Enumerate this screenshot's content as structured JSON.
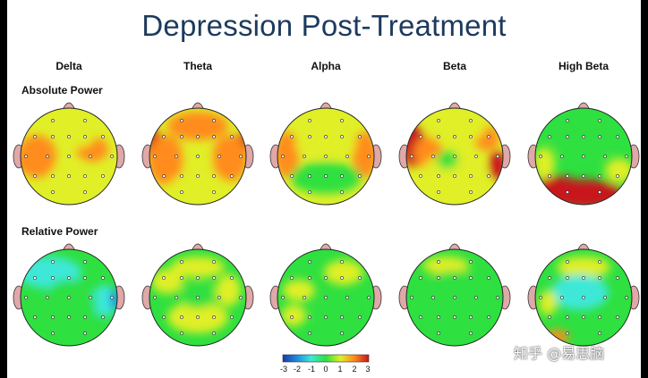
{
  "title": "Depression Post-Treatment",
  "bands": [
    "Delta",
    "Theta",
    "Alpha",
    "Beta",
    "High Beta"
  ],
  "rows": [
    "Absolute Power",
    "Relative Power"
  ],
  "colorbar": {
    "ticks": [
      "-3",
      "-2",
      "-1",
      "0",
      "1",
      "2",
      "3"
    ],
    "colors": [
      "#1a3aa8",
      "#1e8fe0",
      "#3ee8d8",
      "#2ee040",
      "#e0ef28",
      "#ff8c1a",
      "#c8141a"
    ]
  },
  "icons": {
    "head": "head-map-icon",
    "ear": "ear-icon",
    "nose": "nose-icon"
  },
  "watermark": "知乎 @易思脑"
}
